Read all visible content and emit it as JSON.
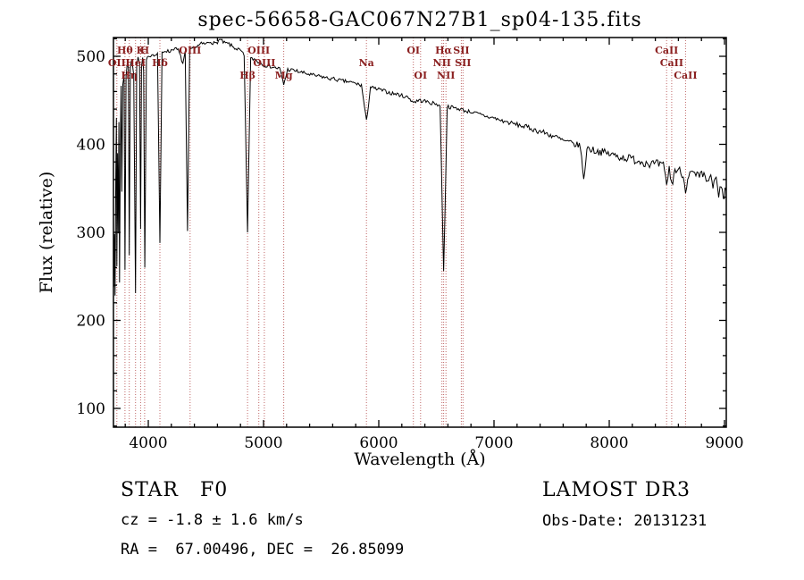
{
  "title": "spec-56658-GAC067N27B1_sp04-135.fits",
  "axes": {
    "xlabel": "Wavelength (Å)",
    "ylabel": "Flux (relative)",
    "x_ticks": [
      4000,
      5000,
      6000,
      7000,
      8000,
      9000
    ],
    "y_ticks": [
      100,
      200,
      300,
      400,
      500
    ],
    "x_range": [
      3698,
      9016
    ],
    "y_range": [
      79,
      521
    ]
  },
  "colors": {
    "spectrum": "#000000",
    "line_marker": "#c06868",
    "line_label": "#8b2020",
    "axis": "#000000"
  },
  "spectral_lines": [
    {
      "label": "Hθ",
      "wavelength": 3798,
      "row": 1
    },
    {
      "label": "K",
      "wavelength": 3933,
      "row": 1
    },
    {
      "label": "H",
      "wavelength": 3968,
      "row": 1
    },
    {
      "label": "OIII",
      "wavelength": 4363,
      "row": 1
    },
    {
      "label": "OIII",
      "wavelength": 4959,
      "row": 1
    },
    {
      "label": "OI",
      "wavelength": 6300,
      "row": 1
    },
    {
      "label": "Hα",
      "wavelength": 6563,
      "row": 1
    },
    {
      "label": "SII",
      "wavelength": 6716,
      "row": 1
    },
    {
      "label": "CaII",
      "wavelength": 8498,
      "row": 1
    },
    {
      "label": "OII",
      "wavelength": 3727,
      "row": 2
    },
    {
      "label": "HeI",
      "wavelength": 3889,
      "row": 2
    },
    {
      "label": "Hδ",
      "wavelength": 4101,
      "row": 2
    },
    {
      "label": "OIII",
      "wavelength": 5007,
      "row": 2
    },
    {
      "label": "Na",
      "wavelength": 5893,
      "row": 2
    },
    {
      "label": "NII",
      "wavelength": 6548,
      "row": 2
    },
    {
      "label": "SII",
      "wavelength": 6731,
      "row": 2
    },
    {
      "label": "CaII",
      "wavelength": 8542,
      "row": 2
    },
    {
      "label": "Hη",
      "wavelength": 3835,
      "row": 3
    },
    {
      "label": "Hβ",
      "wavelength": 4861,
      "row": 3
    },
    {
      "label": "Mg",
      "wavelength": 5175,
      "row": 3
    },
    {
      "label": "OI",
      "wavelength": 6363,
      "row": 3
    },
    {
      "label": "NII",
      "wavelength": 6583,
      "row": 3
    },
    {
      "label": "CaII",
      "wavelength": 8662,
      "row": 3
    }
  ],
  "chart_data": {
    "type": "line",
    "title": "spec-56658-GAC067N27B1_sp04-135.fits",
    "xlabel": "Wavelength (Å)",
    "ylabel": "Flux (relative)",
    "xlim": [
      3700,
      9016
    ],
    "ylim": [
      79,
      521
    ],
    "grid": false,
    "series": [
      {
        "name": "spectrum",
        "color": "#000000",
        "points": [
          [
            3700,
            240
          ],
          [
            3706,
            300
          ],
          [
            3712,
            226
          ],
          [
            3718,
            360
          ],
          [
            3723,
            430
          ],
          [
            3727,
            262
          ],
          [
            3733,
            390
          ],
          [
            3739,
            300
          ],
          [
            3745,
            425
          ],
          [
            3750,
            242
          ],
          [
            3757,
            400
          ],
          [
            3764,
            468
          ],
          [
            3770,
            345
          ],
          [
            3779,
            468
          ],
          [
            3790,
            480
          ],
          [
            3798,
            258
          ],
          [
            3807,
            478
          ],
          [
            3818,
            492
          ],
          [
            3827,
            488
          ],
          [
            3835,
            272
          ],
          [
            3844,
            488
          ],
          [
            3854,
            494
          ],
          [
            3864,
            490
          ],
          [
            3874,
            480
          ],
          [
            3889,
            232
          ],
          [
            3899,
            488
          ],
          [
            3911,
            498
          ],
          [
            3924,
            494
          ],
          [
            3933,
            302
          ],
          [
            3941,
            488
          ],
          [
            3951,
            498
          ],
          [
            3960,
            482
          ],
          [
            3970,
            258
          ],
          [
            3984,
            494
          ],
          [
            4000,
            502
          ],
          [
            4020,
            500
          ],
          [
            4040,
            504
          ],
          [
            4060,
            500
          ],
          [
            4080,
            504
          ],
          [
            4101,
            286
          ],
          [
            4119,
            504
          ],
          [
            4150,
            507
          ],
          [
            4180,
            505
          ],
          [
            4220,
            509
          ],
          [
            4260,
            507
          ],
          [
            4300,
            492
          ],
          [
            4320,
            504
          ],
          [
            4340,
            300
          ],
          [
            4359,
            505
          ],
          [
            4380,
            509
          ],
          [
            4420,
            511
          ],
          [
            4460,
            514
          ],
          [
            4500,
            514
          ],
          [
            4540,
            517
          ],
          [
            4580,
            514
          ],
          [
            4620,
            519
          ],
          [
            4660,
            515
          ],
          [
            4700,
            514
          ],
          [
            4740,
            510
          ],
          [
            4780,
            508
          ],
          [
            4810,
            505
          ],
          [
            4832,
            500
          ],
          [
            4861,
            300
          ],
          [
            4888,
            497
          ],
          [
            4920,
            497
          ],
          [
            4950,
            494
          ],
          [
            4980,
            492
          ],
          [
            5010,
            490
          ],
          [
            5050,
            489
          ],
          [
            5100,
            487
          ],
          [
            5140,
            486
          ],
          [
            5175,
            468
          ],
          [
            5210,
            485
          ],
          [
            5260,
            484
          ],
          [
            5320,
            482
          ],
          [
            5380,
            480
          ],
          [
            5440,
            478
          ],
          [
            5500,
            477
          ],
          [
            5560,
            475
          ],
          [
            5620,
            474
          ],
          [
            5680,
            472
          ],
          [
            5740,
            471
          ],
          [
            5800,
            469
          ],
          [
            5850,
            467
          ],
          [
            5893,
            426
          ],
          [
            5928,
            465
          ],
          [
            5970,
            463
          ],
          [
            6010,
            462
          ],
          [
            6060,
            460
          ],
          [
            6110,
            458
          ],
          [
            6160,
            457
          ],
          [
            6210,
            455
          ],
          [
            6260,
            453
          ],
          [
            6300,
            448
          ],
          [
            6350,
            450
          ],
          [
            6400,
            449
          ],
          [
            6450,
            447
          ],
          [
            6500,
            446
          ],
          [
            6532,
            444
          ],
          [
            6563,
            255
          ],
          [
            6594,
            443
          ],
          [
            6630,
            442
          ],
          [
            6670,
            441
          ],
          [
            6710,
            440
          ],
          [
            6750,
            438
          ],
          [
            6800,
            437
          ],
          [
            6850,
            435
          ],
          [
            6900,
            433
          ],
          [
            6950,
            431
          ],
          [
            7000,
            430
          ],
          [
            7060,
            427
          ],
          [
            7120,
            425
          ],
          [
            7180,
            423
          ],
          [
            7240,
            421
          ],
          [
            7300,
            419
          ],
          [
            7360,
            416
          ],
          [
            7420,
            414
          ],
          [
            7480,
            411
          ],
          [
            7540,
            408
          ],
          [
            7600,
            404
          ],
          [
            7650,
            402
          ],
          [
            7700,
            400
          ],
          [
            7750,
            398
          ],
          [
            7778,
            358
          ],
          [
            7806,
            396
          ],
          [
            7850,
            394
          ],
          [
            7900,
            392
          ],
          [
            7950,
            391
          ],
          [
            8000,
            389
          ],
          [
            8060,
            387
          ],
          [
            8120,
            385
          ],
          [
            8180,
            384
          ],
          [
            8240,
            382
          ],
          [
            8300,
            380
          ],
          [
            8360,
            378
          ],
          [
            8420,
            377
          ],
          [
            8470,
            375
          ],
          [
            8498,
            356
          ],
          [
            8520,
            372
          ],
          [
            8542,
            354
          ],
          [
            8570,
            371
          ],
          [
            8600,
            370
          ],
          [
            8632,
            368
          ],
          [
            8662,
            350
          ],
          [
            8690,
            367
          ],
          [
            8720,
            366
          ],
          [
            8752,
            364
          ],
          [
            8782,
            362
          ],
          [
            8812,
            365
          ],
          [
            8842,
            358
          ],
          [
            8872,
            363
          ],
          [
            8900,
            352
          ],
          [
            8928,
            361
          ],
          [
            8950,
            338
          ],
          [
            8972,
            357
          ],
          [
            8990,
            333
          ],
          [
            9005,
            352
          ],
          [
            9016,
            344
          ]
        ]
      }
    ]
  },
  "footer": {
    "class_line": "STAR   F0",
    "cz_line": "cz = -1.8 ± 1.6 km/s",
    "radec_line": "RA =  67.00496, DEC =  26.85099",
    "survey": "LAMOST DR3",
    "obs_date": "Obs-Date: 20131231"
  }
}
